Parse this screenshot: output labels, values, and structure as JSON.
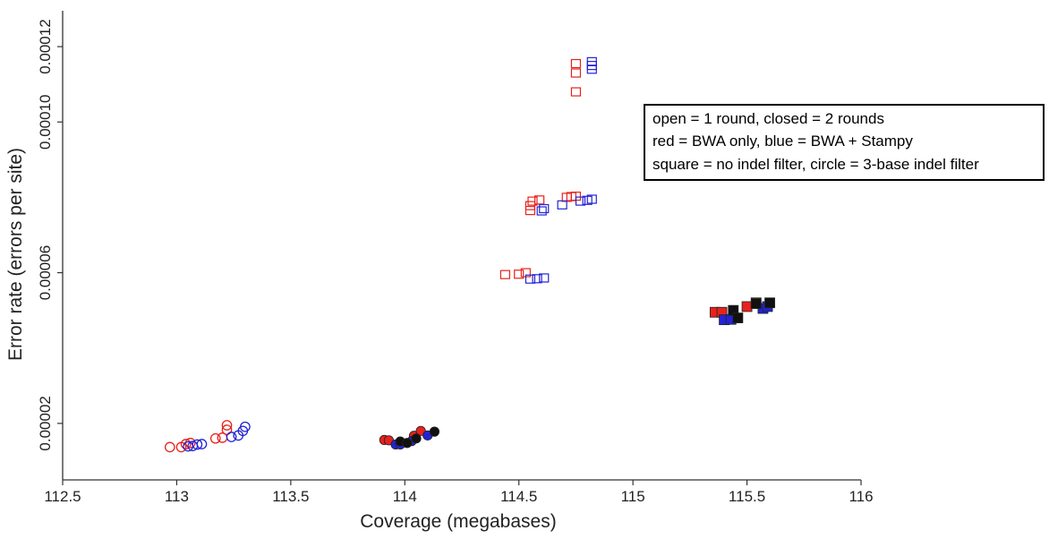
{
  "chart_data": {
    "type": "scatter",
    "xlabel": "Coverage (megabases)",
    "ylabel": "Error rate (errors per site)",
    "xlim": [
      112.5,
      116
    ],
    "ylim": [
      5e-06,
      0.00013
    ],
    "xticks": [
      112.5,
      113,
      113.5,
      114,
      114.5,
      115,
      115.5,
      116
    ],
    "xtick_labels": [
      "112.5",
      "113",
      "113.5",
      "114",
      "114.5",
      "115",
      "115.5",
      "116"
    ],
    "yticks": [
      2e-05,
      6e-05,
      0.0001,
      0.00012
    ],
    "ytick_labels": [
      "0.00002",
      "0.00006",
      "0.00010",
      "0.00012"
    ],
    "grid": false,
    "legend_position": "top-right",
    "legend": [
      "open = 1 round, closed = 2 rounds",
      "red = BWA only, blue = BWA + Stampy",
      "square = no indel filter, circle = 3-base indel filter"
    ],
    "colors": {
      "red": "#e8221c",
      "blue": "#2323d6",
      "black": "#111111"
    },
    "series": [
      {
        "marker": "circle",
        "fill": "open",
        "color": "red",
        "points": [
          [
            112.97,
            1.37e-05
          ],
          [
            113.02,
            1.37e-05
          ],
          [
            113.04,
            1.45e-05
          ],
          [
            113.06,
            1.48e-05
          ],
          [
            113.17,
            1.6e-05
          ],
          [
            113.2,
            1.62e-05
          ],
          [
            113.22,
            1.95e-05
          ],
          [
            113.22,
            1.83e-05
          ]
        ]
      },
      {
        "marker": "circle",
        "fill": "open",
        "color": "blue",
        "points": [
          [
            113.05,
            1.39e-05
          ],
          [
            113.07,
            1.4e-05
          ],
          [
            113.09,
            1.44e-05
          ],
          [
            113.11,
            1.45e-05
          ],
          [
            113.24,
            1.64e-05
          ],
          [
            113.27,
            1.68e-05
          ],
          [
            113.29,
            1.8e-05
          ],
          [
            113.3,
            1.91e-05
          ]
        ]
      },
      {
        "marker": "circle",
        "fill": "closed",
        "color": "red",
        "points": [
          [
            113.91,
            1.56e-05
          ],
          [
            113.93,
            1.55e-05
          ],
          [
            114.04,
            1.67e-05
          ],
          [
            114.07,
            1.8e-05
          ]
        ]
      },
      {
        "marker": "circle",
        "fill": "closed",
        "color": "blue",
        "points": [
          [
            113.96,
            1.44e-05
          ],
          [
            113.98,
            1.44e-05
          ],
          [
            114.03,
            1.53e-05
          ],
          [
            114.1,
            1.68e-05
          ]
        ]
      },
      {
        "marker": "circle",
        "fill": "closed",
        "color": "black",
        "points": [
          [
            113.98,
            1.52e-05
          ],
          [
            114.01,
            1.48e-05
          ],
          [
            114.05,
            1.6e-05
          ],
          [
            114.13,
            1.78e-05
          ]
        ]
      },
      {
        "marker": "square",
        "fill": "open",
        "color": "red",
        "points": [
          [
            114.44,
            5.95e-05
          ],
          [
            114.5,
            5.96e-05
          ],
          [
            114.53,
            6e-05
          ],
          [
            114.55,
            7.65e-05
          ],
          [
            114.55,
            7.78e-05
          ],
          [
            114.56,
            7.9e-05
          ],
          [
            114.59,
            7.93e-05
          ],
          [
            114.71,
            8e-05
          ],
          [
            114.73,
            8.02e-05
          ],
          [
            114.75,
            8.03e-05
          ],
          [
            114.75,
            0.000108
          ],
          [
            114.75,
            0.000113
          ],
          [
            114.75,
            0.0001155
          ]
        ]
      },
      {
        "marker": "square",
        "fill": "open",
        "color": "blue",
        "points": [
          [
            114.55,
            5.83e-05
          ],
          [
            114.58,
            5.84e-05
          ],
          [
            114.61,
            5.86e-05
          ],
          [
            114.6,
            7.64e-05
          ],
          [
            114.61,
            7.7e-05
          ],
          [
            114.69,
            7.8e-05
          ],
          [
            114.77,
            7.9e-05
          ],
          [
            114.8,
            7.92e-05
          ],
          [
            114.82,
            7.95e-05
          ],
          [
            114.82,
            0.000114
          ],
          [
            114.82,
            0.000115
          ],
          [
            114.82,
            0.000116
          ]
        ]
      },
      {
        "marker": "square",
        "fill": "closed",
        "color": "red",
        "points": [
          [
            115.36,
            4.95e-05
          ],
          [
            115.39,
            4.95e-05
          ],
          [
            115.5,
            5.1e-05
          ],
          [
            115.54,
            5.2e-05
          ]
        ]
      },
      {
        "marker": "square",
        "fill": "closed",
        "color": "blue",
        "points": [
          [
            115.4,
            4.75e-05
          ],
          [
            115.43,
            4.76e-05
          ],
          [
            115.57,
            5.05e-05
          ],
          [
            115.59,
            5.1e-05
          ]
        ]
      },
      {
        "marker": "square",
        "fill": "closed",
        "color": "black",
        "points": [
          [
            115.44,
            5e-05
          ],
          [
            115.46,
            4.8e-05
          ],
          [
            115.54,
            5.18e-05
          ],
          [
            115.6,
            5.2e-05
          ]
        ]
      }
    ]
  }
}
